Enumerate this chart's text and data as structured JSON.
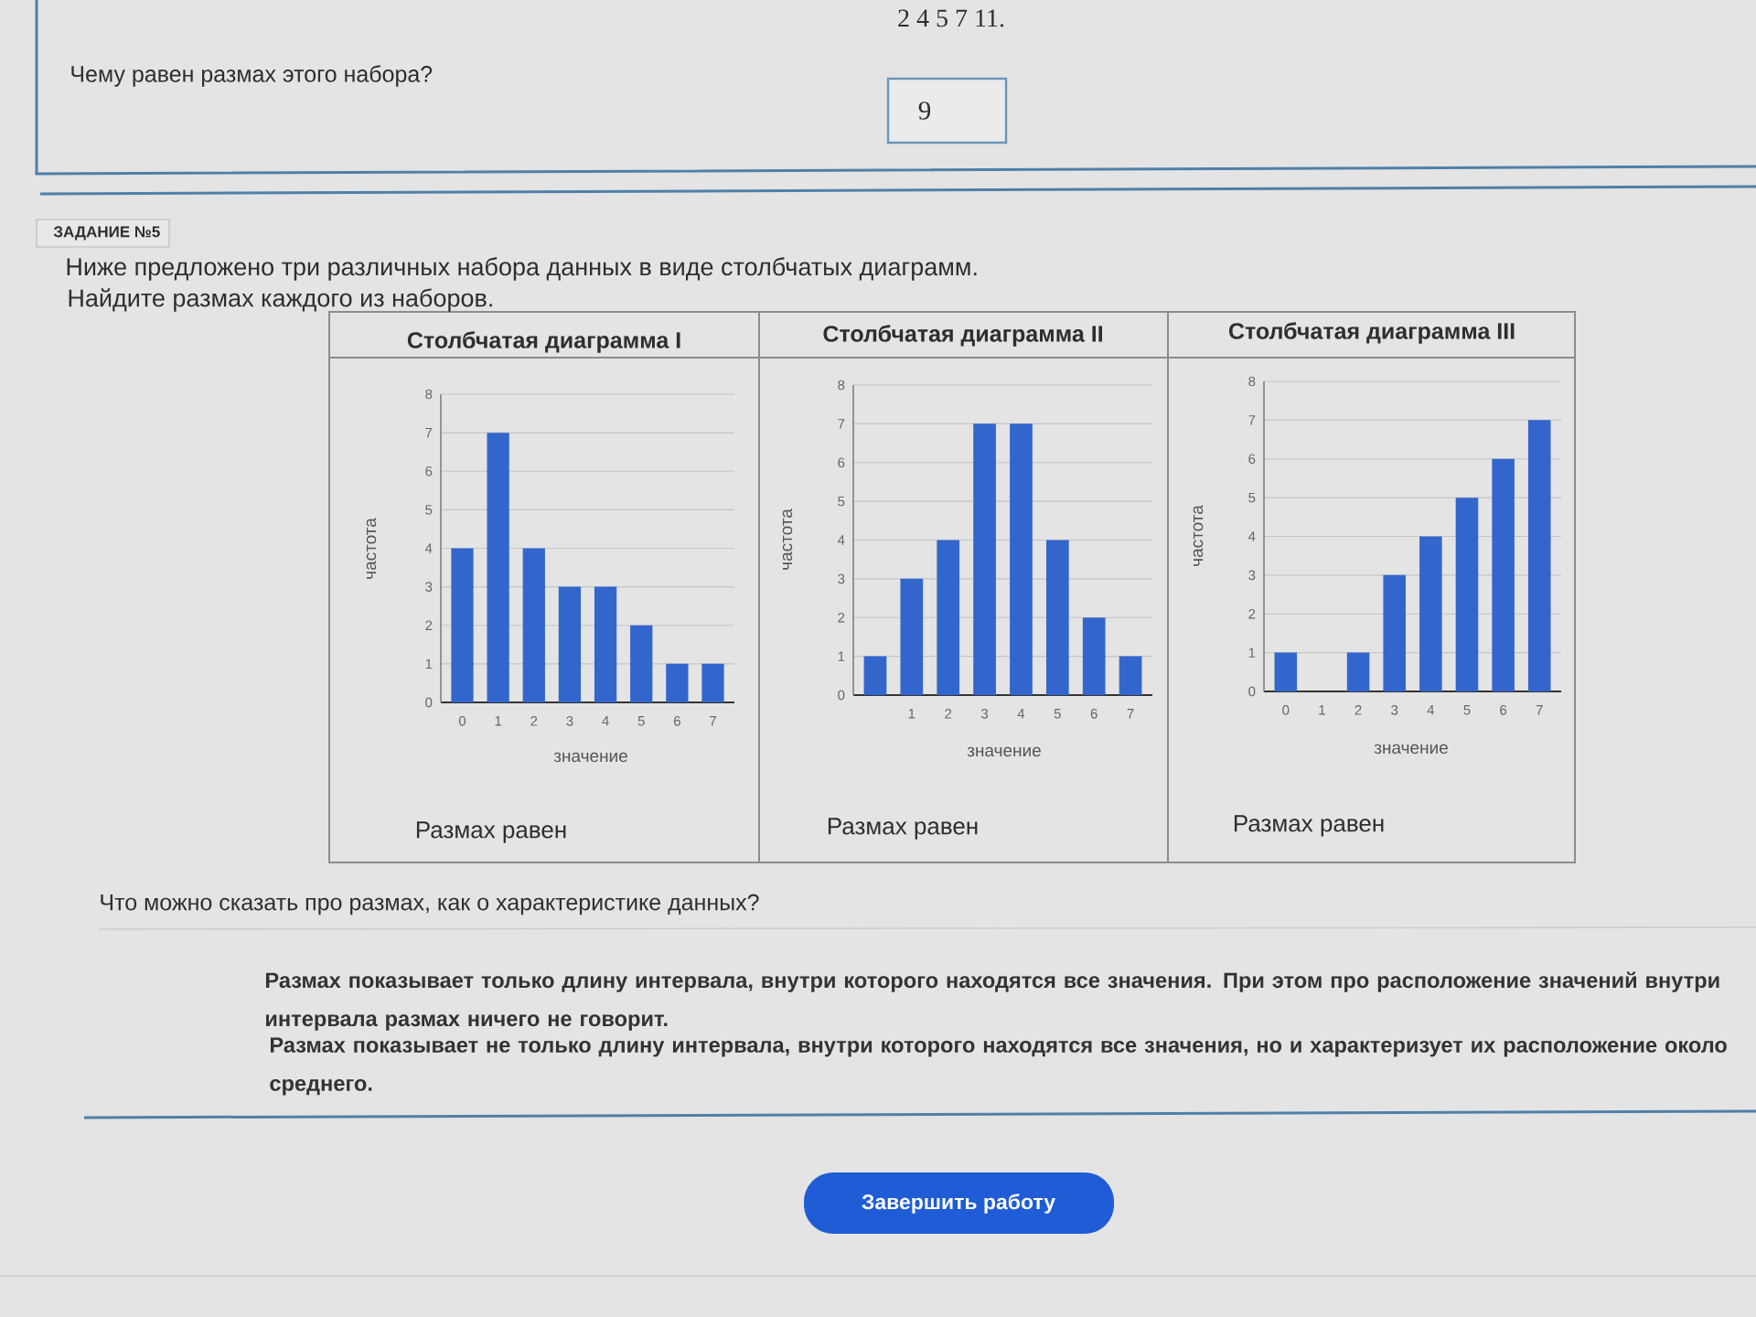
{
  "chart_data": [
    {
      "type": "other",
      "annotations": [
        "2 4 5 7 11.",
        "Чему равен размах этого набора?",
        "9",
        "ЗАДАНИЕ №5",
        "Ниже предложено три различных набора данных в виде столбчатых диаграмм.",
        "Найдите размах каждого из наборов."
      ]
    },
    {
      "type": "bar",
      "title": "Столбчатая диаграмма I",
      "xlabel": "значение",
      "ylabel": "частота",
      "categories": [
        "0",
        "1",
        "2",
        "3",
        "4",
        "5",
        "6",
        "7"
      ],
      "values": [
        4,
        7,
        4,
        3,
        3,
        2,
        1,
        1
      ],
      "color": "#3366cc",
      "ylim": [
        0,
        8
      ],
      "yticks": [
        0,
        1,
        2,
        3,
        4,
        5,
        6,
        7,
        8
      ],
      "grid": "y",
      "annotations": [
        "Размах равен"
      ]
    },
    {
      "type": "bar",
      "title": "Столбчатая диаграмма II",
      "xlabel": "значение",
      "ylabel": "частота",
      "categories": [
        null,
        "1",
        "2",
        "3",
        "4",
        "5",
        "6",
        "7"
      ],
      "values": [
        1,
        3,
        4,
        7,
        7,
        4,
        2,
        1
      ],
      "color": "#3366cc",
      "ylim": [
        0,
        8
      ],
      "yticks": [
        0,
        1,
        2,
        3,
        4,
        5,
        6,
        7,
        8
      ],
      "grid": "y",
      "annotations": [
        "Размах равен"
      ]
    },
    {
      "type": "bar",
      "title": "Столбчатая диаграмма III",
      "xlabel": "значение",
      "ylabel": "частота",
      "categories": [
        "0",
        "1",
        "2",
        "3",
        "4",
        "5",
        "6",
        "7"
      ],
      "values": [
        1,
        0,
        1,
        3,
        4,
        5,
        6,
        7
      ],
      "color": "#3366cc",
      "ylim": [
        0,
        8
      ],
      "yticks": [
        0,
        1,
        2,
        3,
        4,
        5,
        6,
        7,
        8
      ],
      "grid": "y",
      "annotations": [
        "Размах равен"
      ]
    },
    {
      "type": "other",
      "annotations": [
        "Что можно сказать про размах, как о характеристике данных?",
        "Размах показывает только длину интервала, внутри которого находятся все значения. При этом про расположение значений внутри интервала размах ничего не говорит.",
        "Размах показывает не только длину интервала, внутри которого находятся все значения, но и характеризует их расположение около среднего.",
        "Завершить работу"
      ]
    }
  ]
}
